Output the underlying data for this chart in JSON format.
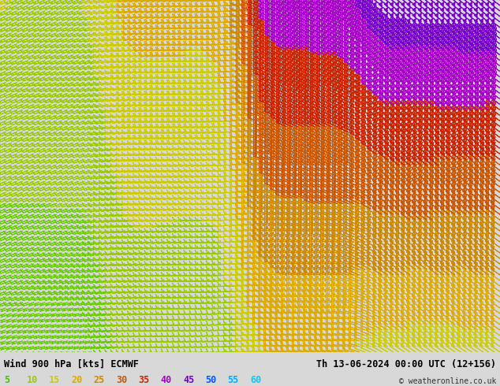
{
  "title_left": "Wind 900 hPa [kts] ECMWF",
  "title_right": "Th 13-06-2024 00:00 UTC (12+156)",
  "copyright": "© weatheronline.co.uk",
  "legend_values": [
    5,
    10,
    15,
    20,
    25,
    30,
    35,
    40,
    45,
    50,
    55,
    60
  ],
  "legend_colors": [
    "#33cc00",
    "#99cc00",
    "#cccc00",
    "#ccaa00",
    "#cc8800",
    "#cc5500",
    "#cc2200",
    "#aa00cc",
    "#6600ff",
    "#0044ff",
    "#00aaff",
    "#00ccff"
  ],
  "bg_color": "#d8d8d8",
  "sea_color": "#e8e8e8",
  "land_color": "#c8edaa",
  "coast_color": "#888888",
  "fig_width": 6.34,
  "fig_height": 4.9,
  "dpi": 100,
  "lon_min": -12.0,
  "lon_max": 18.0,
  "lat_min": 46.0,
  "lat_max": 62.5,
  "speed_thresholds": [
    5,
    10,
    15,
    20,
    25,
    30,
    35,
    40,
    45,
    50,
    55,
    60
  ],
  "arrow_colors": {
    "0": "#33cc00",
    "5": "#99cc00",
    "10": "#cccc00",
    "15": "#ccaa00",
    "20": "#cc8800",
    "25": "#cc5500",
    "30": "#cc2200",
    "35": "#aa00cc",
    "40": "#6600ff",
    "45": "#0044ff",
    "50": "#00aaff",
    "55": "#00ccff"
  },
  "bottom_bar_height": 0.088,
  "bottom_bar_color": "#c8c8c8"
}
